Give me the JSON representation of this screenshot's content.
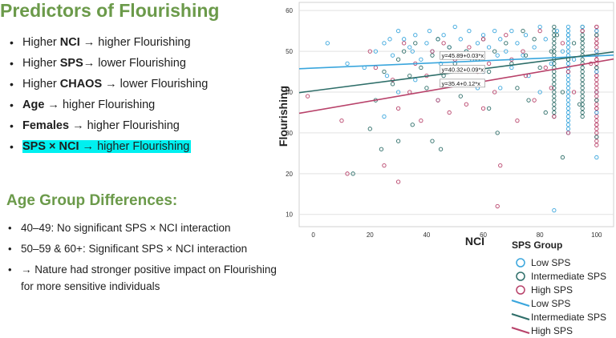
{
  "slide": {
    "title": "Predictors of Flourishing",
    "bullets": [
      {
        "pre": "Higher ",
        "bold": "NCI",
        "post": " → higher Flourishing"
      },
      {
        "pre": "Higher ",
        "bold": "SPS",
        "post": "→ lower Flourishing"
      },
      {
        "pre": "Higher ",
        "bold": "CHAOS",
        "post": " → lower Flourishing"
      },
      {
        "pre": "",
        "bold": "Age",
        "post": " →  higher Flourishing"
      },
      {
        "pre": "",
        "bold": "Females →",
        "post": " higher Flourishing"
      },
      {
        "pre": "",
        "bold": "SPS × NCI →",
        "post": " higher Flourishing"
      }
    ],
    "subtitle": "Age Group Differences:",
    "bullets2": [
      "40–49: No significant SPS × NCI interaction",
      "50–59 & 60+: Significant SPS × NCI interaction",
      " → Nature had stronger positive impact on Flourishing for more sensitive individuals"
    ]
  },
  "chart_data": {
    "type": "scatter",
    "xlabel": "NCI",
    "ylabel": "Flourishing",
    "xlim": [
      -5,
      106
    ],
    "ylim": [
      7,
      62
    ],
    "xticks": [
      0,
      20,
      40,
      60,
      80,
      100
    ],
    "yticks": [
      10,
      20,
      30,
      40,
      50,
      60
    ],
    "grid": true,
    "legend_title": "SPS Group",
    "legend_position": "bottom-right",
    "series": [
      {
        "name": "Low SPS",
        "color": "#3aa6dd",
        "line": {
          "intercept": 45.89,
          "slope": 0.03,
          "label": "y=45.89+0.03*x"
        },
        "points": [
          [
            5,
            52
          ],
          [
            12,
            47
          ],
          [
            18,
            46
          ],
          [
            22,
            50
          ],
          [
            25,
            52
          ],
          [
            27,
            53
          ],
          [
            28,
            49
          ],
          [
            30,
            55
          ],
          [
            32,
            53
          ],
          [
            34,
            51
          ],
          [
            35,
            50
          ],
          [
            36,
            54
          ],
          [
            38,
            48
          ],
          [
            40,
            52
          ],
          [
            41,
            55
          ],
          [
            42,
            50
          ],
          [
            44,
            53
          ],
          [
            45,
            47
          ],
          [
            46,
            54
          ],
          [
            48,
            51
          ],
          [
            50,
            56
          ],
          [
            50,
            49
          ],
          [
            52,
            53
          ],
          [
            54,
            50
          ],
          [
            55,
            55
          ],
          [
            56,
            48
          ],
          [
            58,
            52
          ],
          [
            60,
            54
          ],
          [
            60,
            45
          ],
          [
            62,
            51
          ],
          [
            64,
            55
          ],
          [
            65,
            49
          ],
          [
            66,
            53
          ],
          [
            68,
            50
          ],
          [
            70,
            55
          ],
          [
            70,
            46
          ],
          [
            72,
            52
          ],
          [
            74,
            49
          ],
          [
            75,
            54
          ],
          [
            76,
            44
          ],
          [
            78,
            51
          ],
          [
            80,
            56
          ],
          [
            80,
            40
          ],
          [
            82,
            53
          ],
          [
            84,
            47
          ],
          [
            85,
            11
          ],
          [
            86,
            55
          ],
          [
            88,
            50
          ],
          [
            90,
            54
          ],
          [
            92,
            48
          ],
          [
            95,
            56
          ],
          [
            100,
            55
          ],
          [
            100,
            50
          ],
          [
            100,
            45
          ],
          [
            100,
            40
          ],
          [
            100,
            35
          ],
          [
            100,
            24
          ],
          [
            48,
            42
          ],
          [
            36,
            43
          ],
          [
            26,
            44
          ],
          [
            30,
            40
          ],
          [
            44,
            38
          ],
          [
            58,
            41
          ],
          [
            66,
            41
          ],
          [
            25,
            34
          ]
        ]
      },
      {
        "name": "Intermediate SPS",
        "color": "#2e6e69",
        "line": {
          "intercept": 40.32,
          "slope": 0.09,
          "label": "y=40.32+0.09*x"
        },
        "points": [
          [
            14,
            20
          ],
          [
            20,
            31
          ],
          [
            22,
            38
          ],
          [
            24,
            26
          ],
          [
            25,
            45
          ],
          [
            28,
            42
          ],
          [
            30,
            48
          ],
          [
            30,
            28
          ],
          [
            32,
            50
          ],
          [
            34,
            44
          ],
          [
            35,
            32
          ],
          [
            36,
            52
          ],
          [
            38,
            46
          ],
          [
            40,
            41
          ],
          [
            42,
            49
          ],
          [
            42,
            28
          ],
          [
            44,
            53
          ],
          [
            45,
            26
          ],
          [
            46,
            44
          ],
          [
            48,
            51
          ],
          [
            50,
            47
          ],
          [
            52,
            39
          ],
          [
            54,
            50
          ],
          [
            55,
            42
          ],
          [
            58,
            48
          ],
          [
            60,
            53
          ],
          [
            62,
            45
          ],
          [
            62,
            36
          ],
          [
            64,
            50
          ],
          [
            65,
            30
          ],
          [
            68,
            52
          ],
          [
            70,
            47
          ],
          [
            72,
            41
          ],
          [
            74,
            55
          ],
          [
            75,
            49
          ],
          [
            76,
            38
          ],
          [
            78,
            53
          ],
          [
            80,
            46
          ],
          [
            82,
            35
          ],
          [
            84,
            50
          ],
          [
            86,
            54
          ],
          [
            88,
            40
          ],
          [
            88,
            24
          ],
          [
            90,
            48
          ],
          [
            92,
            52
          ],
          [
            94,
            37
          ],
          [
            95,
            53
          ],
          [
            100,
            54
          ],
          [
            100,
            46
          ],
          [
            100,
            38
          ],
          [
            100,
            29
          ]
        ]
      },
      {
        "name": "High SPS",
        "color": "#b8426a",
        "line": {
          "intercept": 35.4,
          "slope": 0.12,
          "label": "y=35.4+0.12*x"
        },
        "points": [
          [
            -2,
            39
          ],
          [
            10,
            33
          ],
          [
            12,
            20
          ],
          [
            20,
            50
          ],
          [
            22,
            46
          ],
          [
            25,
            22
          ],
          [
            28,
            43
          ],
          [
            30,
            36
          ],
          [
            30,
            18
          ],
          [
            32,
            52
          ],
          [
            34,
            40
          ],
          [
            36,
            47
          ],
          [
            38,
            33
          ],
          [
            40,
            44
          ],
          [
            42,
            50
          ],
          [
            44,
            38
          ],
          [
            46,
            52
          ],
          [
            48,
            35
          ],
          [
            50,
            48
          ],
          [
            52,
            42
          ],
          [
            54,
            37
          ],
          [
            55,
            51
          ],
          [
            58,
            45
          ],
          [
            60,
            36
          ],
          [
            60,
            53
          ],
          [
            62,
            47
          ],
          [
            64,
            40
          ],
          [
            65,
            12
          ],
          [
            66,
            22
          ],
          [
            68,
            54
          ],
          [
            70,
            48
          ],
          [
            72,
            33
          ],
          [
            74,
            50
          ],
          [
            75,
            44
          ],
          [
            78,
            38
          ],
          [
            80,
            55
          ],
          [
            82,
            46
          ],
          [
            84,
            41
          ],
          [
            85,
            34
          ],
          [
            88,
            52
          ],
          [
            90,
            30
          ],
          [
            90,
            45
          ],
          [
            92,
            40
          ],
          [
            95,
            55
          ],
          [
            98,
            47
          ],
          [
            100,
            56
          ],
          [
            100,
            52
          ],
          [
            100,
            48
          ],
          [
            100,
            44
          ],
          [
            100,
            40
          ],
          [
            100,
            36
          ],
          [
            100,
            32
          ]
        ]
      }
    ],
    "columns": [
      {
        "x": 85,
        "ymin": 34,
        "ymax": 56,
        "color": "#2e6e69"
      },
      {
        "x": 90,
        "ymin": 30,
        "ymax": 56,
        "color": "#3aa6dd"
      },
      {
        "x": 95,
        "ymin": 34,
        "ymax": 56,
        "color": "#2e6e69"
      },
      {
        "x": 100,
        "ymin": 27,
        "ymax": 56,
        "color": "#b8426a"
      }
    ]
  }
}
